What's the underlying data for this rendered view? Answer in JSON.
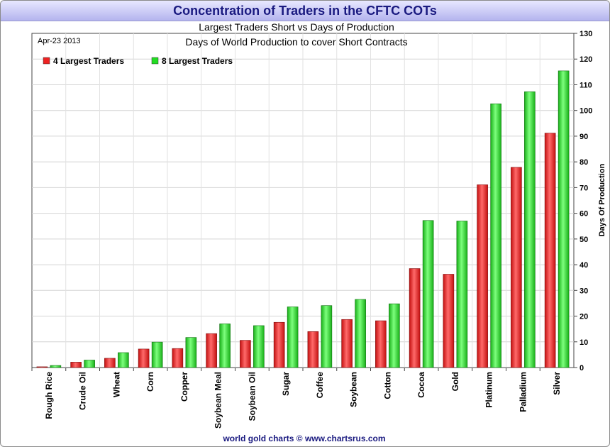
{
  "header": {
    "title": "Concentration of Traders in the CFTC COTs"
  },
  "chart_data": {
    "type": "bar",
    "subtitle": "Largest Traders Short vs Days of Production",
    "title": "Days of World Production to cover Short Contracts",
    "date_label": "Apr-23 2013",
    "ylabel": "Days Of Production",
    "ylim": [
      0,
      130
    ],
    "y_ticks": [
      "0",
      "10",
      "20",
      "30",
      "40",
      "50",
      "60",
      "70",
      "80",
      "90",
      "100",
      "110",
      "120",
      "130"
    ],
    "grid": true,
    "legend_position": "top-left",
    "categories": [
      "Rough Rice",
      "Crude Oil",
      "Wheat",
      "Corn",
      "Copper",
      "Soybean Meal",
      "Soybean Oil",
      "Sugar",
      "Coffee",
      "Soybean",
      "Cotton",
      "Cocoa",
      "Gold",
      "Platinum",
      "Palladium",
      "Silver"
    ],
    "series": [
      {
        "name": "4 Largest Traders",
        "color": "#ee2222",
        "values": [
          0.3,
          2.1,
          3.6,
          7.2,
          7.4,
          13.2,
          10.6,
          17.6,
          14.0,
          18.7,
          18.2,
          38.5,
          36.3,
          71.1,
          77.9,
          91.2
        ]
      },
      {
        "name": "8 Largest Traders",
        "color": "#22dd22",
        "values": [
          0.8,
          2.9,
          5.8,
          9.9,
          11.7,
          17.0,
          16.3,
          23.6,
          24.1,
          26.5,
          24.8,
          57.2,
          57.0,
          102.6,
          107.3,
          115.4
        ]
      }
    ],
    "footer": "world gold charts © www.chartsrus.com"
  }
}
